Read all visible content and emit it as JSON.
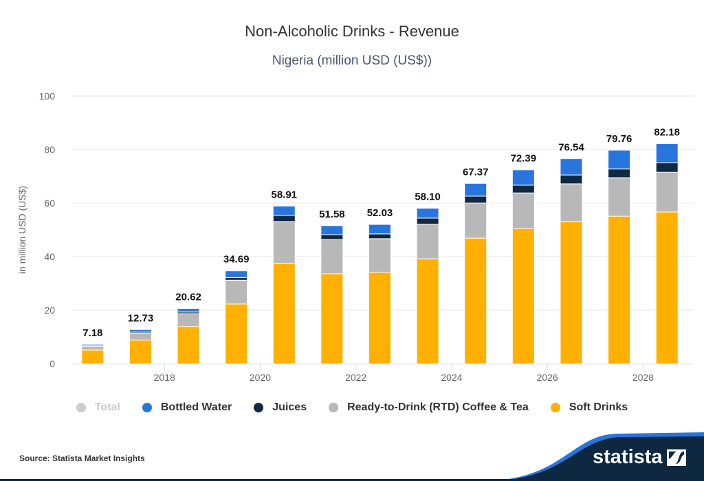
{
  "colors": {
    "total": "#cccccc",
    "bottled_water": "#2876dd",
    "juices": "#0f2942",
    "rtd": "#b8b8b8",
    "soft_drinks": "#ffb000",
    "footer_dark": "#0d2840",
    "footer_accent": "#2876dd"
  },
  "footer": {
    "source": "Source: Statista Market Insights",
    "logo_text": "statista"
  },
  "chart_data": {
    "type": "bar",
    "stacked": true,
    "title": "Non-Alcoholic Drinks - Revenue",
    "subtitle": "Nigeria (million USD (US$))",
    "xlabel": "",
    "ylabel": "in million USD (US$)",
    "ylim": [
      0,
      100
    ],
    "yticks": [
      0,
      20,
      40,
      60,
      80,
      100
    ],
    "grid": true,
    "legend_position": "bottom",
    "categories": [
      "2017",
      "2018",
      "2019",
      "2020",
      "2021",
      "2022",
      "2023",
      "2024",
      "2025",
      "2026",
      "2027",
      "2028",
      "2029"
    ],
    "xtick_labels": [
      "",
      "2018",
      "",
      "2020",
      "",
      "2022",
      "",
      "2024",
      "",
      "2026",
      "",
      "2028",
      ""
    ],
    "totals": [
      7.18,
      12.73,
      20.62,
      34.69,
      58.91,
      51.58,
      52.03,
      58.1,
      67.37,
      72.39,
      76.54,
      79.76,
      82.18
    ],
    "total_labels": [
      "7.18",
      "12.73",
      "20.62",
      "34.69",
      "58.91",
      "51.58",
      "52.03",
      "58.10",
      "67.37",
      "72.39",
      "76.54",
      "79.76",
      "82.18"
    ],
    "legend": [
      {
        "name": "Total",
        "key": "total",
        "active": false
      },
      {
        "name": "Bottled Water",
        "key": "bottled_water",
        "active": true
      },
      {
        "name": "Juices",
        "key": "juices",
        "active": true
      },
      {
        "name": "Ready-to-Drink (RTD) Coffee & Tea",
        "key": "rtd",
        "active": true
      },
      {
        "name": "Soft Drinks",
        "key": "soft_drinks",
        "active": true
      }
    ],
    "series": [
      {
        "name": "Soft Drinks",
        "key": "soft_drinks",
        "values": [
          5.1,
          8.8,
          13.9,
          22.3,
          37.4,
          33.6,
          34.1,
          39.2,
          46.9,
          50.5,
          53.1,
          55.1,
          56.7
        ]
      },
      {
        "name": "Ready-to-Drink (RTD) Coffee & Tea",
        "key": "rtd",
        "values": [
          1.4,
          2.6,
          4.8,
          8.9,
          15.7,
          12.8,
          12.6,
          12.9,
          13.1,
          13.3,
          14.1,
          14.4,
          14.8
        ]
      },
      {
        "name": "Juices",
        "key": "juices",
        "values": [
          0.2,
          0.4,
          0.6,
          1.0,
          2.3,
          1.8,
          1.8,
          2.3,
          2.6,
          2.9,
          3.3,
          3.3,
          3.6
        ]
      },
      {
        "name": "Bottled Water",
        "key": "bottled_water",
        "values": [
          0.48,
          0.93,
          1.32,
          2.49,
          3.51,
          3.38,
          3.53,
          3.7,
          4.77,
          5.69,
          6.04,
          6.96,
          7.08
        ]
      }
    ]
  }
}
